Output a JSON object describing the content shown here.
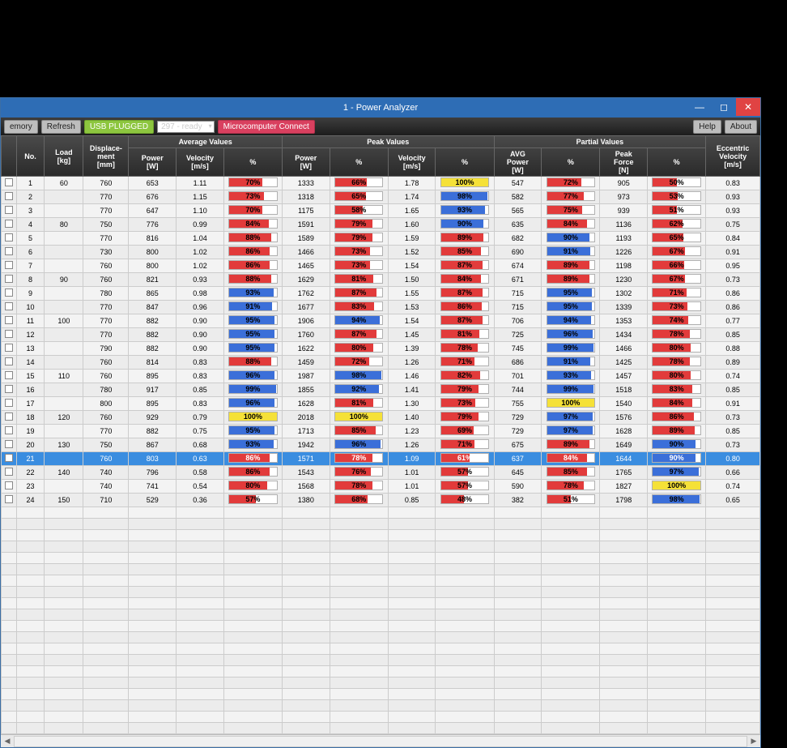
{
  "window": {
    "title": "1 - Power Analyzer"
  },
  "toolbar": {
    "memory": "emory",
    "refresh": "Refresh",
    "usb": "USB PLUGGED",
    "device": "297 - ready",
    "connect": "Microcomputer Connect",
    "help": "Help",
    "about": "About"
  },
  "headers": {
    "no": "No.",
    "load": "Load\n[kg]",
    "disp": "Displace-\nment\n[mm]",
    "avg_group": "Average Values",
    "avg_power": "Power\n[W]",
    "avg_vel": "Velocity\n[m/s]",
    "avg_pct": "%",
    "peak_group": "Peak Values",
    "peak_power": "Power\n[W]",
    "peak_pct1": "%",
    "peak_vel": "Velocity\n[m/s]",
    "peak_pct2": "%",
    "partial_group": "Partial Values",
    "part_avgp": "AVG\nPower\n[W]",
    "part_pct1": "%",
    "part_pf": "Peak\nForce\n[N]",
    "part_pct2": "%",
    "ecc": "Eccentric\nVelocity\n[m/s]"
  },
  "pct_style": {
    "red": {
      "bg": "#e23b3b"
    },
    "blue": {
      "bg": "#3b6fd9"
    },
    "yellow": {
      "bg": "#f5e138"
    }
  },
  "rows": [
    {
      "no": 1,
      "load": "60",
      "disp": "760",
      "ap": "653",
      "av": "1.11",
      "apct": {
        "v": "70%",
        "c": "red"
      },
      "pp": "1333",
      "ppct1": {
        "v": "66%",
        "c": "red"
      },
      "pv": "1.78",
      "ppct2": {
        "v": "100%",
        "c": "yellow"
      },
      "pap": "547",
      "papct": {
        "v": "72%",
        "c": "red"
      },
      "pf": "905",
      "pfpct": {
        "v": "50%",
        "c": "red"
      },
      "ecc": "0.83"
    },
    {
      "no": 2,
      "load": "",
      "disp": "770",
      "ap": "676",
      "av": "1.15",
      "apct": {
        "v": "73%",
        "c": "red"
      },
      "pp": "1318",
      "ppct1": {
        "v": "65%",
        "c": "red"
      },
      "pv": "1.74",
      "ppct2": {
        "v": "98%",
        "c": "blue"
      },
      "pap": "582",
      "papct": {
        "v": "77%",
        "c": "red"
      },
      "pf": "973",
      "pfpct": {
        "v": "53%",
        "c": "red"
      },
      "ecc": "0.93"
    },
    {
      "no": 3,
      "load": "",
      "disp": "770",
      "ap": "647",
      "av": "1.10",
      "apct": {
        "v": "70%",
        "c": "red"
      },
      "pp": "1175",
      "ppct1": {
        "v": "58%",
        "c": "red"
      },
      "pv": "1.65",
      "ppct2": {
        "v": "93%",
        "c": "blue"
      },
      "pap": "565",
      "papct": {
        "v": "75%",
        "c": "red"
      },
      "pf": "939",
      "pfpct": {
        "v": "51%",
        "c": "red"
      },
      "ecc": "0.93"
    },
    {
      "no": 4,
      "load": "80",
      "disp": "750",
      "ap": "776",
      "av": "0.99",
      "apct": {
        "v": "84%",
        "c": "red"
      },
      "pp": "1591",
      "ppct1": {
        "v": "79%",
        "c": "red"
      },
      "pv": "1.60",
      "ppct2": {
        "v": "90%",
        "c": "blue"
      },
      "pap": "635",
      "papct": {
        "v": "84%",
        "c": "red"
      },
      "pf": "1136",
      "pfpct": {
        "v": "62%",
        "c": "red"
      },
      "ecc": "0.75"
    },
    {
      "no": 5,
      "load": "",
      "disp": "770",
      "ap": "816",
      "av": "1.04",
      "apct": {
        "v": "88%",
        "c": "red"
      },
      "pp": "1589",
      "ppct1": {
        "v": "79%",
        "c": "red"
      },
      "pv": "1.59",
      "ppct2": {
        "v": "89%",
        "c": "red"
      },
      "pap": "682",
      "papct": {
        "v": "90%",
        "c": "blue"
      },
      "pf": "1193",
      "pfpct": {
        "v": "65%",
        "c": "red"
      },
      "ecc": "0.84"
    },
    {
      "no": 6,
      "load": "",
      "disp": "730",
      "ap": "800",
      "av": "1.02",
      "apct": {
        "v": "86%",
        "c": "red"
      },
      "pp": "1466",
      "ppct1": {
        "v": "73%",
        "c": "red"
      },
      "pv": "1.52",
      "ppct2": {
        "v": "85%",
        "c": "red"
      },
      "pap": "690",
      "papct": {
        "v": "91%",
        "c": "blue"
      },
      "pf": "1226",
      "pfpct": {
        "v": "67%",
        "c": "red"
      },
      "ecc": "0.91"
    },
    {
      "no": 7,
      "load": "",
      "disp": "760",
      "ap": "800",
      "av": "1.02",
      "apct": {
        "v": "86%",
        "c": "red"
      },
      "pp": "1465",
      "ppct1": {
        "v": "73%",
        "c": "red"
      },
      "pv": "1.54",
      "ppct2": {
        "v": "87%",
        "c": "red"
      },
      "pap": "674",
      "papct": {
        "v": "89%",
        "c": "red"
      },
      "pf": "1198",
      "pfpct": {
        "v": "66%",
        "c": "red"
      },
      "ecc": "0.95"
    },
    {
      "no": 8,
      "load": "90",
      "disp": "760",
      "ap": "821",
      "av": "0.93",
      "apct": {
        "v": "88%",
        "c": "red"
      },
      "pp": "1629",
      "ppct1": {
        "v": "81%",
        "c": "red"
      },
      "pv": "1.50",
      "ppct2": {
        "v": "84%",
        "c": "red"
      },
      "pap": "671",
      "papct": {
        "v": "89%",
        "c": "red"
      },
      "pf": "1230",
      "pfpct": {
        "v": "67%",
        "c": "red"
      },
      "ecc": "0.73"
    },
    {
      "no": 9,
      "load": "",
      "disp": "780",
      "ap": "865",
      "av": "0.98",
      "apct": {
        "v": "93%",
        "c": "blue"
      },
      "pp": "1762",
      "ppct1": {
        "v": "87%",
        "c": "red"
      },
      "pv": "1.55",
      "ppct2": {
        "v": "87%",
        "c": "red"
      },
      "pap": "715",
      "papct": {
        "v": "95%",
        "c": "blue"
      },
      "pf": "1302",
      "pfpct": {
        "v": "71%",
        "c": "red"
      },
      "ecc": "0.86"
    },
    {
      "no": 10,
      "load": "",
      "disp": "770",
      "ap": "847",
      "av": "0.96",
      "apct": {
        "v": "91%",
        "c": "blue"
      },
      "pp": "1677",
      "ppct1": {
        "v": "83%",
        "c": "red"
      },
      "pv": "1.53",
      "ppct2": {
        "v": "86%",
        "c": "red"
      },
      "pap": "715",
      "papct": {
        "v": "95%",
        "c": "blue"
      },
      "pf": "1339",
      "pfpct": {
        "v": "73%",
        "c": "red"
      },
      "ecc": "0.86"
    },
    {
      "no": 11,
      "load": "100",
      "disp": "770",
      "ap": "882",
      "av": "0.90",
      "apct": {
        "v": "95%",
        "c": "blue"
      },
      "pp": "1906",
      "ppct1": {
        "v": "94%",
        "c": "blue"
      },
      "pv": "1.54",
      "ppct2": {
        "v": "87%",
        "c": "red"
      },
      "pap": "706",
      "papct": {
        "v": "94%",
        "c": "blue"
      },
      "pf": "1353",
      "pfpct": {
        "v": "74%",
        "c": "red"
      },
      "ecc": "0.77"
    },
    {
      "no": 12,
      "load": "",
      "disp": "770",
      "ap": "882",
      "av": "0.90",
      "apct": {
        "v": "95%",
        "c": "blue"
      },
      "pp": "1760",
      "ppct1": {
        "v": "87%",
        "c": "red"
      },
      "pv": "1.45",
      "ppct2": {
        "v": "81%",
        "c": "red"
      },
      "pap": "725",
      "papct": {
        "v": "96%",
        "c": "blue"
      },
      "pf": "1434",
      "pfpct": {
        "v": "78%",
        "c": "red"
      },
      "ecc": "0.85"
    },
    {
      "no": 13,
      "load": "",
      "disp": "790",
      "ap": "882",
      "av": "0.90",
      "apct": {
        "v": "95%",
        "c": "blue"
      },
      "pp": "1622",
      "ppct1": {
        "v": "80%",
        "c": "red"
      },
      "pv": "1.39",
      "ppct2": {
        "v": "78%",
        "c": "red"
      },
      "pap": "745",
      "papct": {
        "v": "99%",
        "c": "blue"
      },
      "pf": "1466",
      "pfpct": {
        "v": "80%",
        "c": "red"
      },
      "ecc": "0.88"
    },
    {
      "no": 14,
      "load": "",
      "disp": "760",
      "ap": "814",
      "av": "0.83",
      "apct": {
        "v": "88%",
        "c": "red"
      },
      "pp": "1459",
      "ppct1": {
        "v": "72%",
        "c": "red"
      },
      "pv": "1.26",
      "ppct2": {
        "v": "71%",
        "c": "red"
      },
      "pap": "686",
      "papct": {
        "v": "91%",
        "c": "blue"
      },
      "pf": "1425",
      "pfpct": {
        "v": "78%",
        "c": "red"
      },
      "ecc": "0.89"
    },
    {
      "no": 15,
      "load": "110",
      "disp": "760",
      "ap": "895",
      "av": "0.83",
      "apct": {
        "v": "96%",
        "c": "blue"
      },
      "pp": "1987",
      "ppct1": {
        "v": "98%",
        "c": "blue"
      },
      "pv": "1.46",
      "ppct2": {
        "v": "82%",
        "c": "red"
      },
      "pap": "701",
      "papct": {
        "v": "93%",
        "c": "blue"
      },
      "pf": "1457",
      "pfpct": {
        "v": "80%",
        "c": "red"
      },
      "ecc": "0.74"
    },
    {
      "no": 16,
      "load": "",
      "disp": "780",
      "ap": "917",
      "av": "0.85",
      "apct": {
        "v": "99%",
        "c": "blue"
      },
      "pp": "1855",
      "ppct1": {
        "v": "92%",
        "c": "blue"
      },
      "pv": "1.41",
      "ppct2": {
        "v": "79%",
        "c": "red"
      },
      "pap": "744",
      "papct": {
        "v": "99%",
        "c": "blue"
      },
      "pf": "1518",
      "pfpct": {
        "v": "83%",
        "c": "red"
      },
      "ecc": "0.85"
    },
    {
      "no": 17,
      "load": "",
      "disp": "800",
      "ap": "895",
      "av": "0.83",
      "apct": {
        "v": "96%",
        "c": "blue"
      },
      "pp": "1628",
      "ppct1": {
        "v": "81%",
        "c": "red"
      },
      "pv": "1.30",
      "ppct2": {
        "v": "73%",
        "c": "red"
      },
      "pap": "755",
      "papct": {
        "v": "100%",
        "c": "yellow"
      },
      "pf": "1540",
      "pfpct": {
        "v": "84%",
        "c": "red"
      },
      "ecc": "0.91"
    },
    {
      "no": 18,
      "load": "120",
      "disp": "760",
      "ap": "929",
      "av": "0.79",
      "apct": {
        "v": "100%",
        "c": "yellow"
      },
      "pp": "2018",
      "ppct1": {
        "v": "100%",
        "c": "yellow"
      },
      "pv": "1.40",
      "ppct2": {
        "v": "79%",
        "c": "red"
      },
      "pap": "729",
      "papct": {
        "v": "97%",
        "c": "blue"
      },
      "pf": "1576",
      "pfpct": {
        "v": "86%",
        "c": "red"
      },
      "ecc": "0.73"
    },
    {
      "no": 19,
      "load": "",
      "disp": "770",
      "ap": "882",
      "av": "0.75",
      "apct": {
        "v": "95%",
        "c": "blue"
      },
      "pp": "1713",
      "ppct1": {
        "v": "85%",
        "c": "red"
      },
      "pv": "1.23",
      "ppct2": {
        "v": "69%",
        "c": "red"
      },
      "pap": "729",
      "papct": {
        "v": "97%",
        "c": "blue"
      },
      "pf": "1628",
      "pfpct": {
        "v": "89%",
        "c": "red"
      },
      "ecc": "0.85"
    },
    {
      "no": 20,
      "load": "130",
      "disp": "750",
      "ap": "867",
      "av": "0.68",
      "apct": {
        "v": "93%",
        "c": "blue"
      },
      "pp": "1942",
      "ppct1": {
        "v": "96%",
        "c": "blue"
      },
      "pv": "1.26",
      "ppct2": {
        "v": "71%",
        "c": "red"
      },
      "pap": "675",
      "papct": {
        "v": "89%",
        "c": "red"
      },
      "pf": "1649",
      "pfpct": {
        "v": "90%",
        "c": "blue"
      },
      "ecc": "0.73"
    },
    {
      "no": 21,
      "load": "",
      "disp": "760",
      "ap": "803",
      "av": "0.63",
      "apct": {
        "v": "86%",
        "c": "red"
      },
      "pp": "1571",
      "ppct1": {
        "v": "78%",
        "c": "red"
      },
      "pv": "1.09",
      "ppct2": {
        "v": "61%",
        "c": "red"
      },
      "pap": "637",
      "papct": {
        "v": "84%",
        "c": "red"
      },
      "pf": "1644",
      "pfpct": {
        "v": "90%",
        "c": "blue"
      },
      "ecc": "0.80",
      "sel": true
    },
    {
      "no": 22,
      "load": "140",
      "disp": "740",
      "ap": "796",
      "av": "0.58",
      "apct": {
        "v": "86%",
        "c": "red"
      },
      "pp": "1543",
      "ppct1": {
        "v": "76%",
        "c": "red"
      },
      "pv": "1.01",
      "ppct2": {
        "v": "57%",
        "c": "red"
      },
      "pap": "645",
      "papct": {
        "v": "85%",
        "c": "red"
      },
      "pf": "1765",
      "pfpct": {
        "v": "97%",
        "c": "blue"
      },
      "ecc": "0.66"
    },
    {
      "no": 23,
      "load": "",
      "disp": "740",
      "ap": "741",
      "av": "0.54",
      "apct": {
        "v": "80%",
        "c": "red"
      },
      "pp": "1568",
      "ppct1": {
        "v": "78%",
        "c": "red"
      },
      "pv": "1.01",
      "ppct2": {
        "v": "57%",
        "c": "red"
      },
      "pap": "590",
      "papct": {
        "v": "78%",
        "c": "red"
      },
      "pf": "1827",
      "pfpct": {
        "v": "100%",
        "c": "yellow"
      },
      "ecc": "0.74"
    },
    {
      "no": 24,
      "load": "150",
      "disp": "710",
      "ap": "529",
      "av": "0.36",
      "apct": {
        "v": "57%",
        "c": "red"
      },
      "pp": "1380",
      "ppct1": {
        "v": "68%",
        "c": "red"
      },
      "pv": "0.85",
      "ppct2": {
        "v": "48%",
        "c": "red"
      },
      "pap": "382",
      "papct": {
        "v": "51%",
        "c": "red"
      },
      "pf": "1798",
      "pfpct": {
        "v": "98%",
        "c": "blue"
      },
      "ecc": "0.65"
    }
  ],
  "empty_rows": 20
}
